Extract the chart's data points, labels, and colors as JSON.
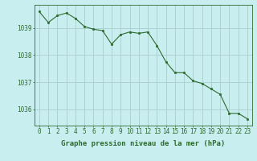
{
  "x": [
    0,
    1,
    2,
    3,
    4,
    5,
    6,
    7,
    8,
    9,
    10,
    11,
    12,
    13,
    14,
    15,
    16,
    17,
    18,
    19,
    20,
    21,
    22,
    23
  ],
  "y": [
    1039.6,
    1039.2,
    1039.45,
    1039.55,
    1039.35,
    1039.05,
    1038.95,
    1038.9,
    1038.4,
    1038.75,
    1038.85,
    1038.8,
    1038.85,
    1038.35,
    1037.75,
    1037.35,
    1037.35,
    1037.05,
    1036.95,
    1036.75,
    1036.55,
    1035.85,
    1035.85,
    1035.65
  ],
  "line_color": "#2d6a2d",
  "marker_color": "#2d6a2d",
  "bg_color": "#c8eef0",
  "grid_color": "#aacccc",
  "axis_color": "#2d6a2d",
  "xlabel": "Graphe pression niveau de la mer (hPa)",
  "yticks": [
    1036,
    1037,
    1038,
    1039
  ],
  "xticks": [
    0,
    1,
    2,
    3,
    4,
    5,
    6,
    7,
    8,
    9,
    10,
    11,
    12,
    13,
    14,
    15,
    16,
    17,
    18,
    19,
    20,
    21,
    22,
    23
  ],
  "ylim": [
    1035.4,
    1039.85
  ],
  "xlim": [
    -0.5,
    23.5
  ],
  "fontsize_xlabel": 6.5,
  "fontsize_ticks": 5.5
}
